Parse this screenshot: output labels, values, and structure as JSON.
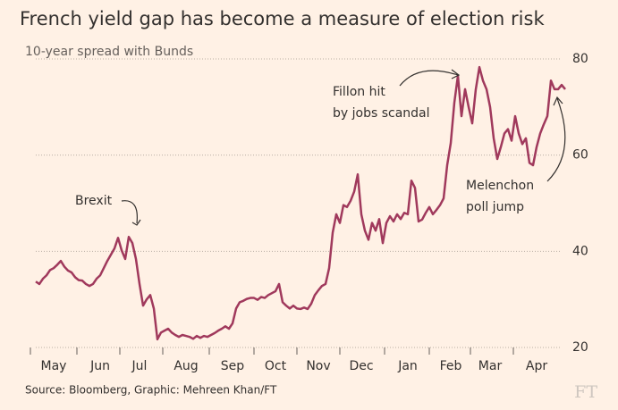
{
  "chart_data": {
    "type": "line",
    "title": "French yield gap has become a measure of election risk",
    "subtitle": "10-year spread with Bunds",
    "source": "Source: Bloomberg, Graphic: Mehreen Khan/FT",
    "logo": "FT",
    "categories": [
      null,
      null,
      null,
      null,
      null,
      "May",
      null,
      null,
      null,
      null,
      null,
      null,
      null,
      null,
      null,
      null,
      null,
      null,
      "Jun",
      null,
      null,
      null,
      null,
      null,
      null,
      null,
      null,
      null,
      null,
      "Jul",
      null,
      null,
      null,
      null,
      null,
      null,
      null,
      null,
      null,
      null,
      null,
      null,
      "Aug",
      null,
      null,
      null,
      null,
      null,
      null,
      null,
      null,
      null,
      null,
      null,
      null,
      "Sep",
      null,
      null,
      null,
      null,
      null,
      null,
      null,
      null,
      null,
      null,
      null,
      "Oct",
      null,
      null,
      null,
      null,
      null,
      null,
      null,
      null,
      null,
      null,
      null,
      "Nov",
      null,
      null,
      null,
      null,
      null,
      null,
      null,
      null,
      null,
      null,
      null,
      "Dec",
      null,
      null,
      null,
      null,
      null,
      null,
      null,
      null,
      null,
      null,
      null,
      null,
      "Jan",
      null,
      null,
      null,
      null,
      null,
      null,
      null,
      null,
      null,
      null,
      null,
      "Feb",
      null,
      null,
      null,
      null,
      null,
      null,
      null,
      null,
      null,
      null,
      "Mar",
      null,
      null,
      null,
      null,
      null,
      null,
      null,
      null,
      null,
      null,
      null,
      null,
      "Apr",
      null,
      null,
      null,
      null,
      null,
      null,
      null,
      null
    ],
    "series": [
      {
        "color": "#a0395c",
        "values": [
          33.7,
          33.2,
          34.3,
          35,
          36.1,
          36.5,
          37.2,
          38,
          36.8,
          36,
          35.6,
          34.6,
          34,
          33.9,
          33.2,
          32.8,
          33.2,
          34.3,
          35,
          36.5,
          38,
          39.3,
          40.6,
          42.8,
          40.2,
          38.4,
          43,
          41.7,
          38.4,
          33.2,
          28.7,
          30,
          30.9,
          28.1,
          21.7,
          23.1,
          23.5,
          23.9,
          23.1,
          22.6,
          22.2,
          22.6,
          22.4,
          22.2,
          21.8,
          22.4,
          22,
          22.4,
          22.2,
          22.6,
          23,
          23.5,
          23.9,
          24.4,
          23.9,
          25,
          28.1,
          29.4,
          29.7,
          30.1,
          30.3,
          30.3,
          29.9,
          30.5,
          30.3,
          30.9,
          31.3,
          31.7,
          33.2,
          29.4,
          28.7,
          28.1,
          28.7,
          28.1,
          28,
          28.3,
          28,
          29.1,
          30.9,
          31.9,
          32.8,
          33.2,
          36.5,
          43.9,
          47.7,
          45.9,
          49.6,
          49.2,
          50.5,
          52.4,
          56,
          47.7,
          44.3,
          42.4,
          45.9,
          44.3,
          46.7,
          41.7,
          45.9,
          47.3,
          46.2,
          47.7,
          46.7,
          48,
          47.7,
          54.7,
          53.2,
          46.2,
          46.6,
          48,
          49.2,
          47.7,
          48.6,
          49.6,
          51,
          57.9,
          62.5,
          70.9,
          76.5,
          68.1,
          73.7,
          70,
          66.6,
          73.7,
          78.3,
          75.5,
          73.7,
          70,
          63.5,
          59.2,
          61.7,
          64.5,
          65.4,
          63,
          68.1,
          64.5,
          62.3,
          63.5,
          58.4,
          57.9,
          61.7,
          64.5,
          66.4,
          68.1,
          75.5,
          73.7,
          73.7,
          74.6,
          73.7
        ]
      }
    ],
    "ylim": [
      20,
      80
    ],
    "yticks": [
      20,
      40,
      60,
      80
    ],
    "grid": true,
    "annotations": [
      [
        "Brexit"
      ],
      [
        "Fillon hit",
        "by jobs scandal"
      ],
      [
        "Melenchon",
        "poll jump"
      ]
    ]
  }
}
